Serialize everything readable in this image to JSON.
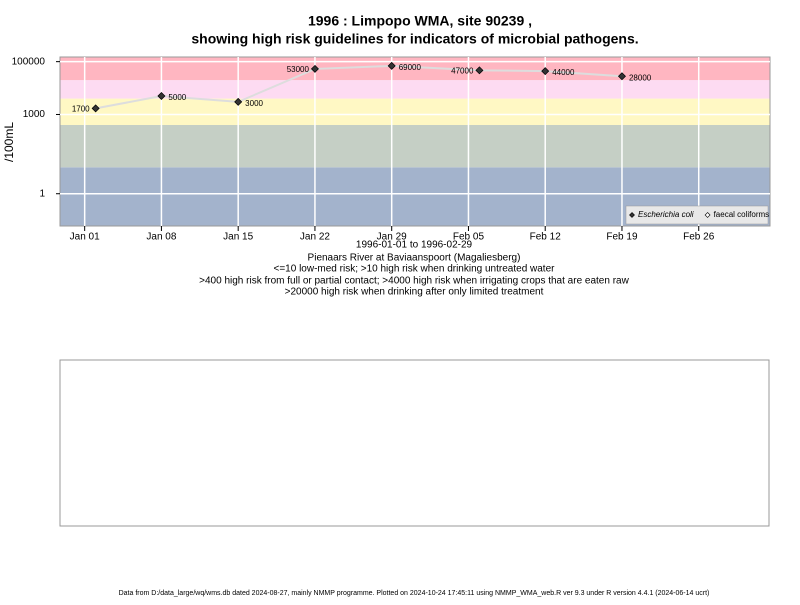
{
  "chart_data": {
    "type": "line",
    "title": "1996 : Limpopo WMA, site 90239 ,",
    "subtitle": "showing high risk guidelines for indicators of microbial pathogens.",
    "y_label": "/100mL",
    "x_label": "1996-01-01 to 1996-02-29",
    "notes": [
      "Pienaars River at Baviaanspoort (Magaliesberg)",
      "<=10 low-med risk; >10 high risk when drinking untreated water",
      ">400 high risk from full or partial contact; >4000 high risk when irrigating crops that are eaten raw",
      ">20000 high risk when drinking after only limited treatment"
    ],
    "footer": "Data from D:/data_large/wq/wms.db dated 2024-08-27, mainly NMMP programme. Plotted on 2024-10-24 17:45:11 using NMMP_WMA_web.R ver 9.3 under R version 4.4.1 (2024-06-14 ucrt)",
    "log_scale": true,
    "grid": true,
    "legend_position": "bottom-right",
    "x": [
      "1996-01-02",
      "1996-01-08",
      "1996-01-15",
      "1996-01-22",
      "1996-01-29",
      "1996-02-06",
      "1996-02-12",
      "1996-02-19"
    ],
    "series": [
      {
        "name": "Escherichia coli",
        "color": "#333333",
        "line_color": "#dddddd",
        "values": [
          1700,
          5000,
          3000,
          53000,
          69000,
          47000,
          44000,
          28000
        ]
      },
      {
        "name": "faecal coliforms",
        "color": "#ffffff",
        "values": [
          null,
          null,
          null,
          null,
          null,
          null,
          null,
          null
        ]
      }
    ],
    "risk_thresholds": [
      10,
      400,
      4000,
      20000
    ],
    "band_colors": [
      "#a3b3cc",
      "#c5cfc5",
      "#fff8c4",
      "#fddbf2",
      "#ffb6c1"
    ],
    "xlim": [
      "1995-12-29T18:00",
      "1996-03-03T12:00"
    ],
    "xticks": [
      {
        "value": "1996-01-01",
        "label": "Jan 01"
      },
      {
        "value": "1996-01-08",
        "label": "Jan 08"
      },
      {
        "value": "1996-01-15",
        "label": "Jan 15"
      },
      {
        "value": "1996-01-22",
        "label": "Jan 22"
      },
      {
        "value": "1996-01-29",
        "label": "Jan 29"
      },
      {
        "value": "1996-02-05",
        "label": "Feb 05"
      },
      {
        "value": "1996-02-12",
        "label": "Feb 12"
      },
      {
        "value": "1996-02-19",
        "label": "Feb 19"
      },
      {
        "value": "1996-02-26",
        "label": "Feb 26"
      }
    ],
    "ylim": [
      0.06,
      150000
    ],
    "yticks": [
      1,
      1000,
      100000
    ]
  }
}
